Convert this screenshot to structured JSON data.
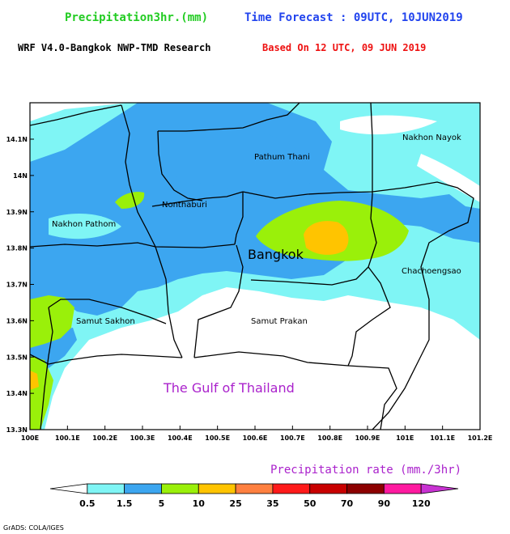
{
  "header": {
    "product": "Precipitation3hr.(mm)",
    "forecast": "Time Forecast : 09UTC, 10JUN2019",
    "model": "WRF V4.0-Bangkok NWP-TMD Research",
    "based_on": "Based On 12 UTC, 09 JUN 2019"
  },
  "colors": {
    "product": "#22cc22",
    "forecast": "#2244ee",
    "based_on": "#ee1111",
    "gulf_label": "#aa22cc",
    "legend_title": "#aa22cc"
  },
  "map": {
    "y_axis_labels": [
      "14.1N",
      "14N",
      "13.9N",
      "13.8N",
      "13.7N",
      "13.6N",
      "13.5N",
      "13.4N",
      "13.3N"
    ],
    "x_axis_labels": [
      "100E",
      "100.1E",
      "100.2E",
      "100.3E",
      "100.4E",
      "100.5E",
      "100.6E",
      "100.7E",
      "100.8E",
      "100.9E",
      "101E",
      "101.1E",
      "101.2E"
    ],
    "places": {
      "nakhon_nayok": "Nakhon Nayok",
      "pathum_thani": "Pathum Thani",
      "nonthaburi": "Nonthaburi",
      "nakhon_pathom": "Nakhon Pathom",
      "bangkok": "Bangkok",
      "chachoengsao": "Chachoengsao",
      "samut_sakhon": "Samut Sakhon",
      "samut_prakan": "Samut Prakan",
      "gulf": "The Gulf of Thailand"
    }
  },
  "legend": {
    "title": "Precipitation rate (mm./3hr)",
    "thresholds": [
      "0.5",
      "1.5",
      "5",
      "10",
      "25",
      "35",
      "50",
      "70",
      "90",
      "120"
    ],
    "colors": [
      "#ffffff",
      "#7ff5f5",
      "#3ca6f0",
      "#9af00a",
      "#ffc400",
      "#ff8040",
      "#ff1a1a",
      "#c80000",
      "#8c0000",
      "#ff1aa0",
      "#c832d2"
    ]
  },
  "credit": "GrADS: COLA/IGES"
}
